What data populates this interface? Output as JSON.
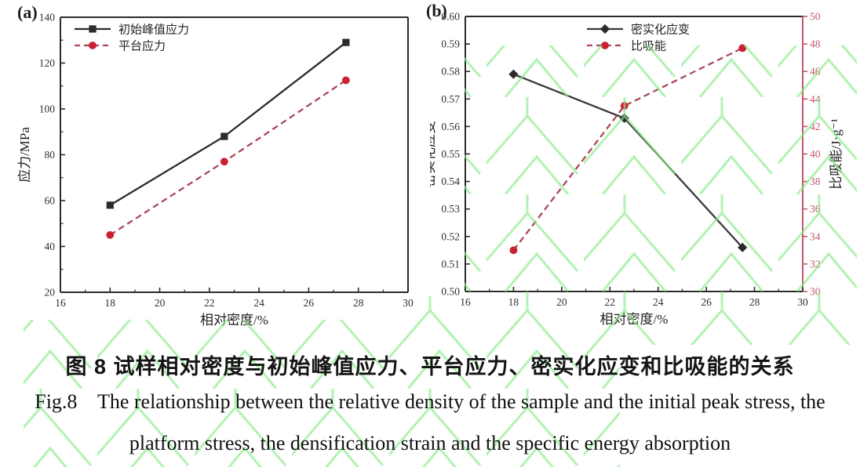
{
  "panels": {
    "a_label": "(a)",
    "b_label": "(b)"
  },
  "caption": {
    "chinese": "图 8  试样相对密度与初始峰值应力、平台应力、密实化应变和比吸能的关系",
    "english_line1": "Fig.8    The relationship between the relative density of the sample and the initial peak stress, the",
    "english_line2": "platform stress, the densification strain and the specific energy absorption"
  },
  "colors": {
    "axis_black": "#2b2b2b",
    "right_axis_red": "#c4566a",
    "black_series": "#2b2b2b",
    "red_marker": "#cb1f32",
    "red_line": "#a8485a",
    "watermark_green": "#8aec8a",
    "tick_text": "#2f2f2f"
  },
  "chart_data": [
    {
      "id": "chart-a",
      "type": "line",
      "xlabel": "相对密度/%",
      "ylabel": "应力/MPa",
      "xlim": [
        16,
        30
      ],
      "ylim": [
        20,
        140
      ],
      "xticks": [
        "16",
        "18",
        "20",
        "22",
        "24",
        "26",
        "28",
        "30"
      ],
      "xticks_minor": [
        17,
        19,
        21,
        23,
        25,
        27,
        29
      ],
      "yticks": [
        "20",
        "40",
        "60",
        "80",
        "100",
        "120",
        "140"
      ],
      "yticks_minor": [
        30,
        50,
        70,
        90,
        110,
        130
      ],
      "grid": false,
      "legend_position": "top-left",
      "x": [
        18,
        22.6,
        27.5
      ],
      "series": [
        {
          "name": "初始峰值应力",
          "values": [
            58,
            88,
            129
          ],
          "color": "#2b2b2b",
          "line_color": "#2b2b2b",
          "marker": "square",
          "line": "solid",
          "axis": "left"
        },
        {
          "name": "平台应力",
          "values": [
            45,
            77,
            112.5
          ],
          "color": "#cb1f32",
          "line_color": "#a8485a",
          "marker": "circle",
          "line": "dashed",
          "axis": "left"
        }
      ]
    },
    {
      "id": "chart-b",
      "type": "line",
      "xlabel": "相对密度/%",
      "ylabel": "密实化应变",
      "ylabel_right": "比吸能/J·g⁻¹",
      "xlim": [
        16,
        30
      ],
      "ylim": [
        0.5,
        0.6
      ],
      "ylim_right": [
        30,
        50
      ],
      "xticks": [
        "16",
        "18",
        "20",
        "22",
        "24",
        "26",
        "28",
        "30"
      ],
      "xticks_minor": [
        17,
        19,
        21,
        23,
        25,
        27,
        29
      ],
      "yticks": [
        "0.50",
        "0.51",
        "0.52",
        "0.53",
        "0.54",
        "0.55",
        "0.56",
        "0.57",
        "0.58",
        "0.59",
        "0.60"
      ],
      "yticks_minor": [],
      "yticks_right": [
        "30",
        "32",
        "34",
        "36",
        "38",
        "40",
        "42",
        "44",
        "46",
        "48",
        "50"
      ],
      "grid": false,
      "legend_position": "top-center",
      "x": [
        18,
        22.6,
        27.5
      ],
      "series": [
        {
          "name": "密实化应变",
          "values": [
            0.579,
            0.563,
            0.516
          ],
          "color": "#2b2b2b",
          "line_color": "#3a3a3a",
          "marker": "diamond",
          "line": "solid",
          "axis": "left"
        },
        {
          "name": "比吸能",
          "values": [
            33,
            43.5,
            47.7
          ],
          "color": "#cb1f32",
          "line_color": "#a8485a",
          "marker": "circle",
          "line": "dashed",
          "axis": "right"
        }
      ]
    }
  ]
}
